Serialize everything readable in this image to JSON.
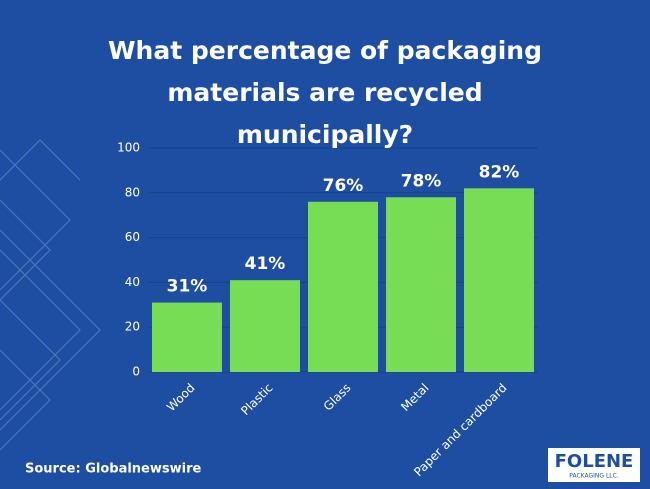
{
  "chart_data": {
    "type": "bar",
    "title": "What percentage of packaging materials are recycled municipally?",
    "categories": [
      "Wood",
      "Plastic",
      "Glass",
      "Metal",
      "Paper and cardboard"
    ],
    "values": [
      31,
      41,
      76,
      78,
      82
    ],
    "value_labels": [
      "31%",
      "41%",
      "76%",
      "78%",
      "82%"
    ],
    "color": "#77dd55",
    "ylim": [
      0,
      100
    ],
    "yticks": [
      0,
      20,
      40,
      60,
      80,
      100
    ],
    "grid": true,
    "source": "Source: Globalnewswire",
    "logo": {
      "name": "FOLENE",
      "subtitle": "PACKAGING LLC."
    }
  }
}
